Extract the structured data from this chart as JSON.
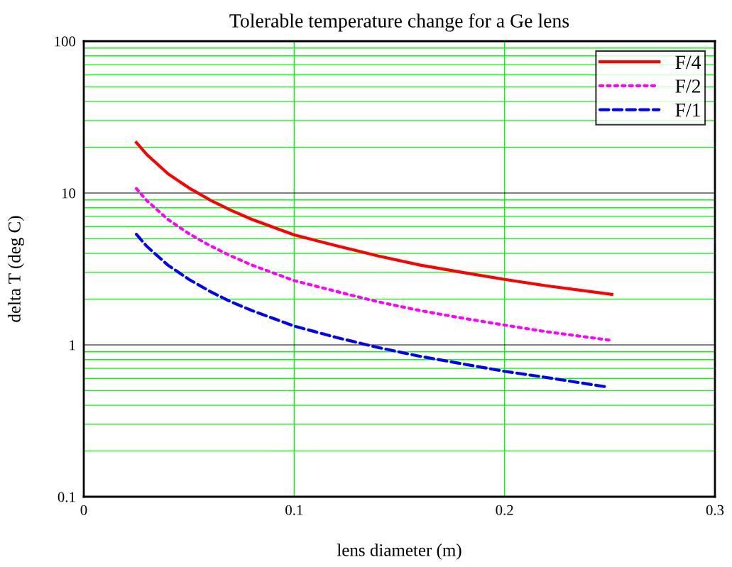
{
  "chart_data": {
    "type": "line",
    "title": "Tolerable temperature change for a Ge lens",
    "xlabel": "lens diameter (m)",
    "ylabel": "delta T (deg C)",
    "log": "y",
    "xlim": [
      0,
      0.3
    ],
    "xticks": [
      0,
      0.1,
      0.2,
      0.3
    ],
    "ylim": [
      0.1,
      100
    ],
    "yticks": [
      0.1,
      1,
      10,
      100
    ],
    "grid": true,
    "legend": "top right",
    "series": [
      {
        "name": "F/4",
        "color": "#ff0000",
        "line_style": "solid",
        "x": [
          0.025,
          0.03,
          0.04,
          0.05,
          0.06,
          0.07,
          0.08,
          0.1,
          0.12,
          0.14,
          0.16,
          0.18,
          0.2,
          0.22,
          0.251
        ],
        "values": [
          21.5,
          17.9,
          13.4,
          10.8,
          9.0,
          7.7,
          6.7,
          5.3,
          4.5,
          3.85,
          3.35,
          3.0,
          2.7,
          2.45,
          2.15
        ]
      },
      {
        "name": "F/2",
        "color": "#ff00ff",
        "line_style": "dotted",
        "x": [
          0.025,
          0.03,
          0.04,
          0.05,
          0.06,
          0.07,
          0.08,
          0.1,
          0.12,
          0.14,
          0.16,
          0.18,
          0.2,
          0.22,
          0.251
        ],
        "values": [
          10.7,
          8.9,
          6.7,
          5.4,
          4.5,
          3.85,
          3.35,
          2.65,
          2.25,
          1.92,
          1.68,
          1.5,
          1.35,
          1.22,
          1.07
        ]
      },
      {
        "name": "F/1",
        "color": "#0000ff",
        "line_style": "dashed",
        "x": [
          0.025,
          0.03,
          0.04,
          0.05,
          0.06,
          0.07,
          0.08,
          0.1,
          0.12,
          0.14,
          0.16,
          0.18,
          0.2,
          0.22,
          0.248
        ],
        "values": [
          5.35,
          4.45,
          3.35,
          2.7,
          2.25,
          1.92,
          1.68,
          1.33,
          1.12,
          0.96,
          0.84,
          0.75,
          0.67,
          0.61,
          0.53
        ]
      }
    ]
  }
}
